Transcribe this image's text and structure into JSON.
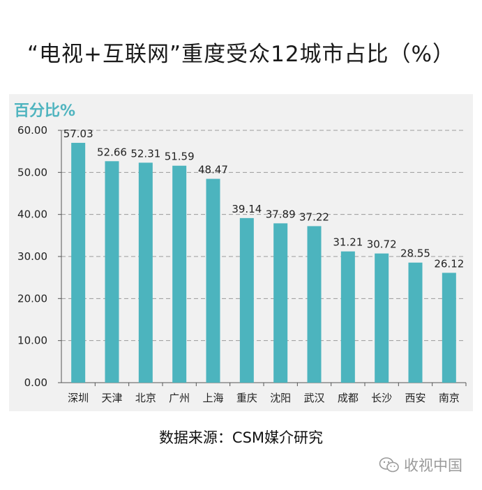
{
  "title": "“电视+互联网”重度受众12城市占比（%）",
  "source": "数据来源：CSM媒介研究",
  "watermark": {
    "text": "收视中国",
    "icon": "wechat-icon"
  },
  "colors": {
    "bar": "#4cb4be",
    "unit_label": "#4fb4bf",
    "panel": "#f1f1f1",
    "grid": "#9a9a9a"
  },
  "chart_data": {
    "type": "bar",
    "ylabel": "百分比%",
    "ylim": [
      0,
      60
    ],
    "yticks": [
      "0.00",
      "10.00",
      "20.00",
      "30.00",
      "40.00",
      "50.00",
      "60.00"
    ],
    "grid": "dashed horizontal",
    "categories": [
      "深圳",
      "天津",
      "北京",
      "广州",
      "上海",
      "重庆",
      "沈阳",
      "武汉",
      "成都",
      "长沙",
      "西安",
      "南京"
    ],
    "values": [
      57.03,
      52.66,
      52.31,
      51.59,
      48.47,
      39.14,
      37.89,
      37.22,
      31.21,
      30.72,
      28.55,
      26.12
    ],
    "data_labels": [
      "57.03",
      "52.66",
      "52.31",
      "51.59",
      "48.47",
      "39.14",
      "37.89",
      "37.22",
      "31.21",
      "30.72",
      "28.55",
      "26.12"
    ]
  }
}
